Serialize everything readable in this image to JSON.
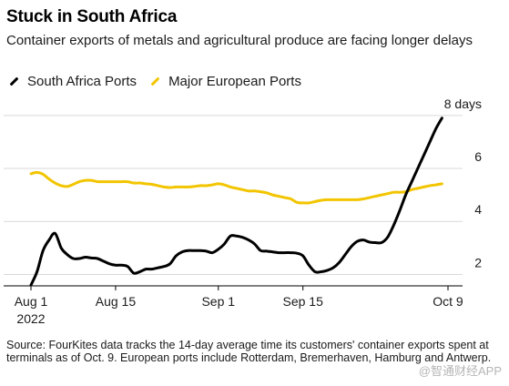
{
  "title": "Stuck in South Africa",
  "subtitle": "Container exports of metals and agricultural produce are facing longer delays",
  "source": "Source: FourKites data tracks the 14-day average time its customers' container exports spent at terminals as of Oct. 9. European ports include Rotterdam, Bremerhaven, Hamburg and Antwerp.",
  "watermark": "@智通财经APP",
  "chart_data": {
    "type": "line",
    "title": "Stuck in South Africa",
    "ylabel": "",
    "xlabel": "",
    "y_unit": "days",
    "ylim": [
      1.5,
      8.2
    ],
    "yticks": [
      {
        "value": 2,
        "label": "2"
      },
      {
        "value": 4,
        "label": "4"
      },
      {
        "value": 6,
        "label": "6"
      },
      {
        "value": 8,
        "label": "8 days"
      }
    ],
    "xlim": [
      "2022-08-01",
      "2022-10-09"
    ],
    "xticks": [
      {
        "date": "2022-08-01",
        "label": "Aug 1",
        "sublabel": "2022"
      },
      {
        "date": "2022-08-15",
        "label": "Aug 15",
        "sublabel": ""
      },
      {
        "date": "2022-09-01",
        "label": "Sep 1",
        "sublabel": ""
      },
      {
        "date": "2022-09-15",
        "label": "Sep 15",
        "sublabel": ""
      },
      {
        "date": "2022-10-09",
        "label": "Oct 9",
        "sublabel": ""
      }
    ],
    "grid": "horizontal",
    "legend_position": "top-left",
    "series": [
      {
        "name": "South Africa Ports",
        "color": "#000000",
        "points": [
          [
            "2022-08-01",
            1.6
          ],
          [
            "2022-08-02",
            2.1
          ],
          [
            "2022-08-03",
            2.9
          ],
          [
            "2022-08-04",
            3.3
          ],
          [
            "2022-08-05",
            3.55
          ],
          [
            "2022-08-06",
            3.0
          ],
          [
            "2022-08-07",
            2.75
          ],
          [
            "2022-08-08",
            2.6
          ],
          [
            "2022-08-09",
            2.6
          ],
          [
            "2022-08-10",
            2.65
          ],
          [
            "2022-08-11",
            2.62
          ],
          [
            "2022-08-12",
            2.6
          ],
          [
            "2022-08-13",
            2.5
          ],
          [
            "2022-08-14",
            2.4
          ],
          [
            "2022-08-15",
            2.35
          ],
          [
            "2022-08-16",
            2.35
          ],
          [
            "2022-08-17",
            2.3
          ],
          [
            "2022-08-18",
            2.05
          ],
          [
            "2022-08-19",
            2.1
          ],
          [
            "2022-08-20",
            2.2
          ],
          [
            "2022-08-21",
            2.2
          ],
          [
            "2022-08-22",
            2.25
          ],
          [
            "2022-08-23",
            2.3
          ],
          [
            "2022-08-24",
            2.4
          ],
          [
            "2022-08-25",
            2.7
          ],
          [
            "2022-08-26",
            2.85
          ],
          [
            "2022-08-27",
            2.9
          ],
          [
            "2022-08-28",
            2.9
          ],
          [
            "2022-08-29",
            2.9
          ],
          [
            "2022-08-30",
            2.88
          ],
          [
            "2022-08-31",
            2.82
          ],
          [
            "2022-09-01",
            2.95
          ],
          [
            "2022-09-02",
            3.15
          ],
          [
            "2022-09-03",
            3.45
          ],
          [
            "2022-09-04",
            3.45
          ],
          [
            "2022-09-05",
            3.4
          ],
          [
            "2022-09-06",
            3.3
          ],
          [
            "2022-09-07",
            3.15
          ],
          [
            "2022-09-08",
            2.9
          ],
          [
            "2022-09-09",
            2.88
          ],
          [
            "2022-09-10",
            2.85
          ],
          [
            "2022-09-11",
            2.82
          ],
          [
            "2022-09-12",
            2.82
          ],
          [
            "2022-09-13",
            2.82
          ],
          [
            "2022-09-14",
            2.8
          ],
          [
            "2022-09-15",
            2.7
          ],
          [
            "2022-09-16",
            2.35
          ],
          [
            "2022-09-17",
            2.1
          ],
          [
            "2022-09-18",
            2.1
          ],
          [
            "2022-09-19",
            2.15
          ],
          [
            "2022-09-20",
            2.25
          ],
          [
            "2022-09-21",
            2.45
          ],
          [
            "2022-09-22",
            2.75
          ],
          [
            "2022-09-23",
            3.05
          ],
          [
            "2022-09-24",
            3.25
          ],
          [
            "2022-09-25",
            3.3
          ],
          [
            "2022-09-26",
            3.22
          ],
          [
            "2022-09-27",
            3.2
          ],
          [
            "2022-09-28",
            3.2
          ],
          [
            "2022-09-29",
            3.4
          ],
          [
            "2022-09-30",
            3.85
          ],
          [
            "2022-10-01",
            4.4
          ],
          [
            "2022-10-02",
            5.0
          ],
          [
            "2022-10-03",
            5.5
          ],
          [
            "2022-10-04",
            6.0
          ],
          [
            "2022-10-05",
            6.5
          ],
          [
            "2022-10-06",
            7.0
          ],
          [
            "2022-10-07",
            7.5
          ],
          [
            "2022-10-08",
            7.9
          ]
        ]
      },
      {
        "name": "Major European Ports",
        "color": "#f2c500",
        "points": [
          [
            "2022-08-01",
            5.8
          ],
          [
            "2022-08-02",
            5.85
          ],
          [
            "2022-08-03",
            5.78
          ],
          [
            "2022-08-04",
            5.6
          ],
          [
            "2022-08-05",
            5.45
          ],
          [
            "2022-08-06",
            5.35
          ],
          [
            "2022-08-07",
            5.32
          ],
          [
            "2022-08-08",
            5.4
          ],
          [
            "2022-08-09",
            5.5
          ],
          [
            "2022-08-10",
            5.55
          ],
          [
            "2022-08-11",
            5.55
          ],
          [
            "2022-08-12",
            5.5
          ],
          [
            "2022-08-13",
            5.5
          ],
          [
            "2022-08-14",
            5.5
          ],
          [
            "2022-08-15",
            5.5
          ],
          [
            "2022-08-16",
            5.5
          ],
          [
            "2022-08-17",
            5.5
          ],
          [
            "2022-08-18",
            5.45
          ],
          [
            "2022-08-19",
            5.45
          ],
          [
            "2022-08-20",
            5.42
          ],
          [
            "2022-08-21",
            5.4
          ],
          [
            "2022-08-22",
            5.35
          ],
          [
            "2022-08-23",
            5.3
          ],
          [
            "2022-08-24",
            5.28
          ],
          [
            "2022-08-25",
            5.3
          ],
          [
            "2022-08-26",
            5.3
          ],
          [
            "2022-08-27",
            5.3
          ],
          [
            "2022-08-28",
            5.32
          ],
          [
            "2022-08-29",
            5.35
          ],
          [
            "2022-08-30",
            5.35
          ],
          [
            "2022-08-31",
            5.38
          ],
          [
            "2022-09-01",
            5.42
          ],
          [
            "2022-09-02",
            5.38
          ],
          [
            "2022-09-03",
            5.3
          ],
          [
            "2022-09-04",
            5.25
          ],
          [
            "2022-09-05",
            5.2
          ],
          [
            "2022-09-06",
            5.15
          ],
          [
            "2022-09-07",
            5.15
          ],
          [
            "2022-09-08",
            5.12
          ],
          [
            "2022-09-09",
            5.08
          ],
          [
            "2022-09-10",
            5.0
          ],
          [
            "2022-09-11",
            4.95
          ],
          [
            "2022-09-12",
            4.9
          ],
          [
            "2022-09-13",
            4.85
          ],
          [
            "2022-09-14",
            4.72
          ],
          [
            "2022-09-15",
            4.7
          ],
          [
            "2022-09-16",
            4.7
          ],
          [
            "2022-09-17",
            4.75
          ],
          [
            "2022-09-18",
            4.8
          ],
          [
            "2022-09-19",
            4.82
          ],
          [
            "2022-09-20",
            4.82
          ],
          [
            "2022-09-21",
            4.82
          ],
          [
            "2022-09-22",
            4.82
          ],
          [
            "2022-09-23",
            4.82
          ],
          [
            "2022-09-24",
            4.82
          ],
          [
            "2022-09-25",
            4.85
          ],
          [
            "2022-09-26",
            4.9
          ],
          [
            "2022-09-27",
            4.95
          ],
          [
            "2022-09-28",
            5.0
          ],
          [
            "2022-09-29",
            5.05
          ],
          [
            "2022-09-30",
            5.1
          ],
          [
            "2022-10-01",
            5.1
          ],
          [
            "2022-10-02",
            5.12
          ],
          [
            "2022-10-03",
            5.2
          ],
          [
            "2022-10-04",
            5.25
          ],
          [
            "2022-10-05",
            5.3
          ],
          [
            "2022-10-06",
            5.35
          ],
          [
            "2022-10-07",
            5.38
          ],
          [
            "2022-10-08",
            5.42
          ]
        ]
      }
    ]
  }
}
